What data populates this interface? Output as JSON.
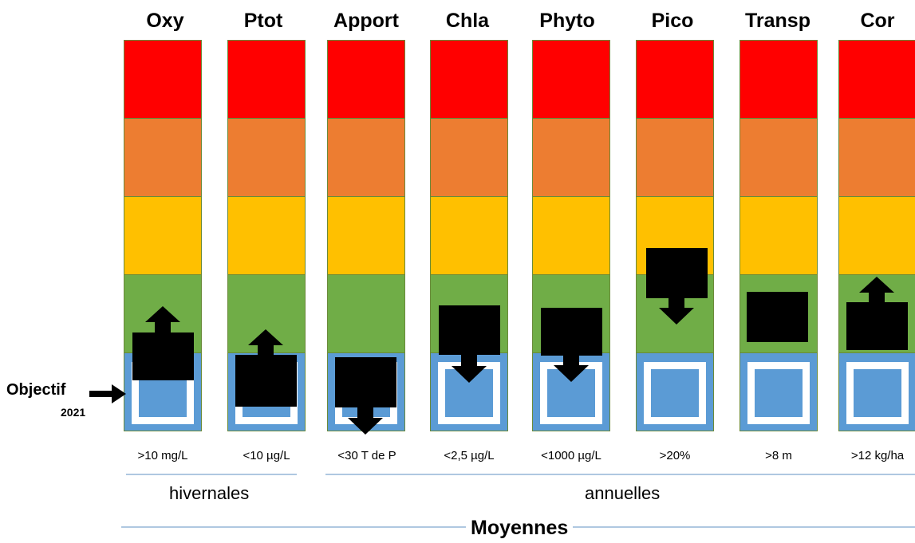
{
  "colors": {
    "red": "#ff0000",
    "orange": "#ed7d31",
    "yellow": "#ffc000",
    "green": "#70ad47",
    "blue": "#5b9bd5",
    "marker": "#000000",
    "rule": "#7fa6cf"
  },
  "columns": [
    {
      "title": "Oxy",
      "threshold": ">10 mg/L",
      "trend": "up"
    },
    {
      "title": "Ptot",
      "threshold": "<10 µg/L",
      "trend": "up"
    },
    {
      "title": "Apport",
      "threshold": "<30 T de P",
      "trend": "down"
    },
    {
      "title": "Chla",
      "threshold": "<2,5 µg/L",
      "trend": "down"
    },
    {
      "title": "Phyto",
      "threshold": "<1000 µg/L",
      "trend": "down"
    },
    {
      "title": "Pico",
      "threshold": ">20%",
      "trend": "down"
    },
    {
      "title": "Transp",
      "threshold": ">8 m",
      "trend": "none"
    },
    {
      "title": "Cor",
      "threshold": ">12 kg/ha",
      "trend": "up"
    }
  ],
  "objective": {
    "label": "Objectif",
    "year": "2021"
  },
  "groups": {
    "winter": "hivernales",
    "annual": "annuelles",
    "averages": "Moyennes"
  }
}
